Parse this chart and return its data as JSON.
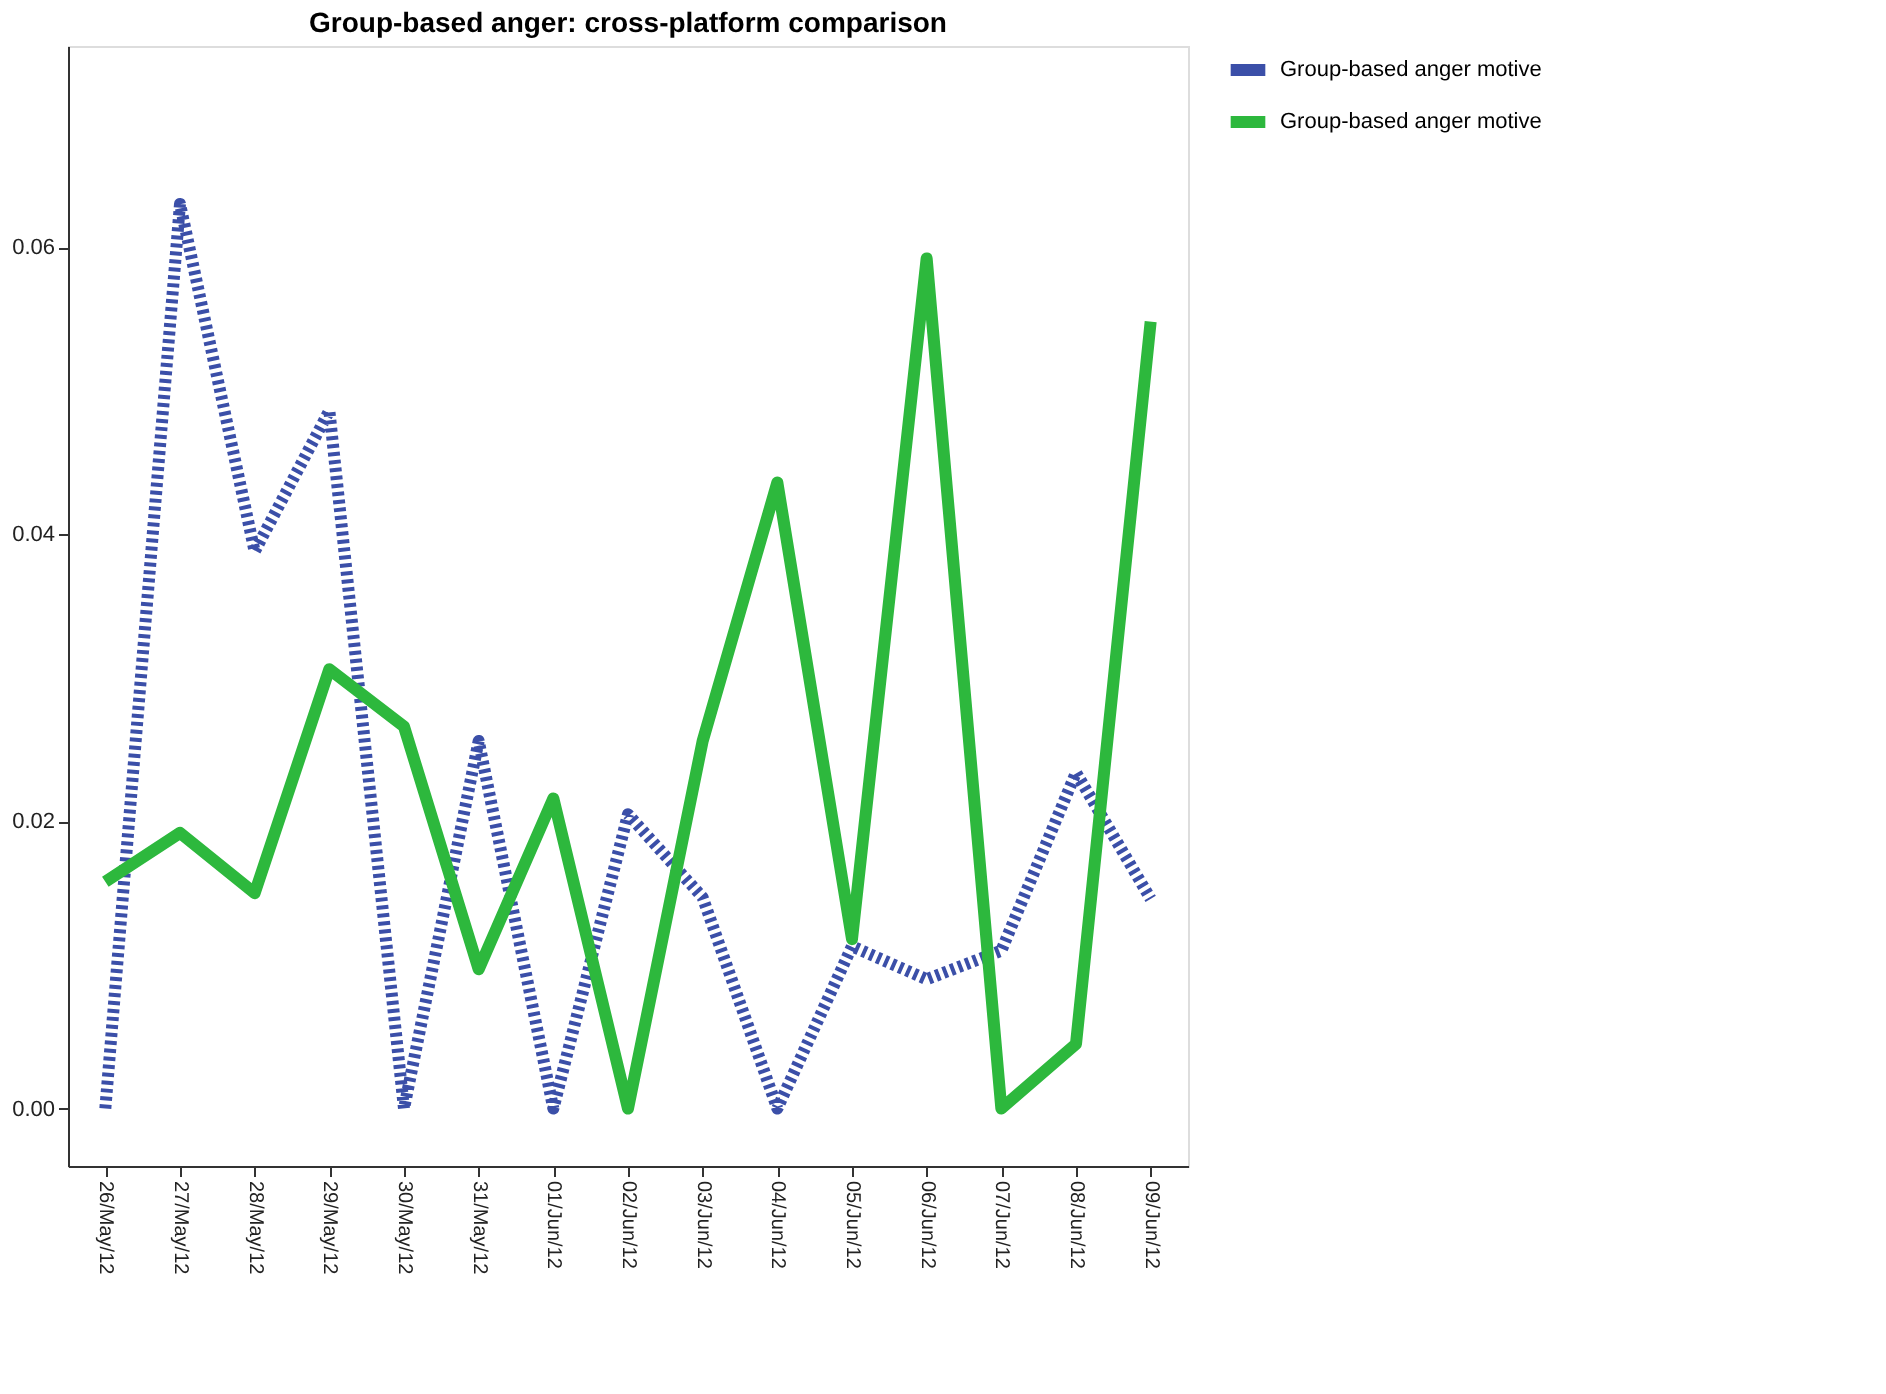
{
  "chart_data": {
    "type": "line",
    "title": "Group-based anger: cross-platform comparison",
    "categories": [
      "26/May/12",
      "27/May/12",
      "28/May/12",
      "29/May/12",
      "30/May/12",
      "31/May/12",
      "01/Jun/12",
      "02/Jun/12",
      "03/Jun/12",
      "04/Jun/12",
      "05/Jun/12",
      "06/Jun/12",
      "07/Jun/12",
      "08/Jun/12",
      "09/Jun/12"
    ],
    "series": [
      {
        "name": "Group-based anger motive",
        "color": "#3b4fa8",
        "line_style": "dotted",
        "values": [
          0,
          0.063,
          0.0388,
          0.0486,
          0,
          0.0256,
          0,
          0.0205,
          0.0147,
          0,
          0.0113,
          0.009,
          0.011,
          0.0234,
          0.0146
        ]
      },
      {
        "name": "Group-based anger motive",
        "color": "#2db83d",
        "line_style": "solid",
        "values": [
          0.0158,
          0.0192,
          0.015,
          0.0306,
          0.0266,
          0.0097,
          0.0216,
          0,
          0.0256,
          0.0436,
          0.0118,
          0.0592,
          0,
          0.0045,
          0.0548
        ]
      }
    ],
    "ylim": [
      -0.004,
      0.074
    ],
    "yticks": [
      {
        "value": 0,
        "label": "0.00"
      },
      {
        "value": 0.02,
        "label": "0.02"
      },
      {
        "value": 0.04,
        "label": "0.04"
      },
      {
        "value": 0.06,
        "label": "0.06"
      }
    ],
    "grid": false,
    "legend": "top right",
    "marker": "none"
  }
}
